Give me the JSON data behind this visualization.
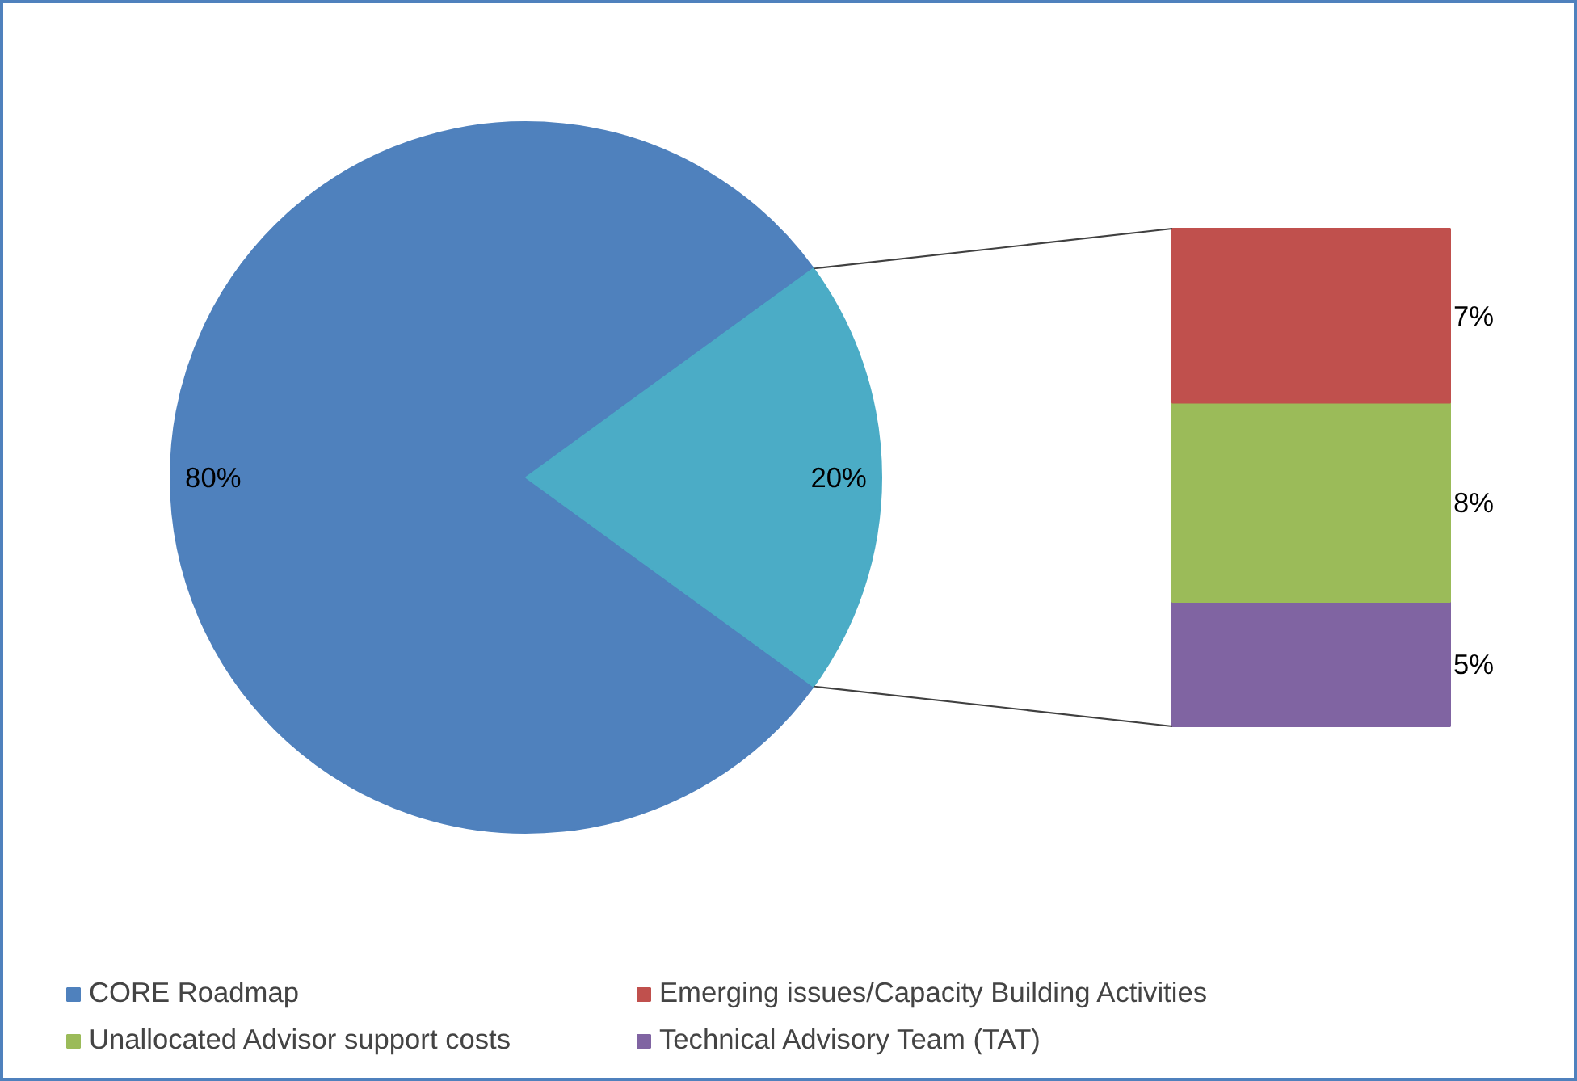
{
  "chart_data": [
    {
      "type": "pie",
      "categories": [
        "CORE Roadmap",
        null
      ],
      "values": [
        80,
        20
      ],
      "colors": [
        "#4f81bd",
        "#4bacc6"
      ],
      "value_labels": [
        "80%",
        "20%"
      ],
      "legend": "bottom"
    },
    {
      "type": "bar",
      "stacked": true,
      "categories": [
        null
      ],
      "legend": "bottom",
      "series": [
        {
          "name": "Technical Advisory Team (TAT)",
          "color": "#8064a2",
          "values": [
            5
          ],
          "value_labels": [
            "5%"
          ]
        },
        {
          "name": "Unallocated Advisor support costs",
          "color": "#9bbb59",
          "values": [
            8
          ],
          "value_labels": [
            "8%"
          ]
        },
        {
          "name": "Emerging issues/Capacity Building Activities",
          "color": "#c0504d",
          "values": [
            7
          ],
          "value_labels": [
            "7%"
          ]
        }
      ]
    }
  ]
}
